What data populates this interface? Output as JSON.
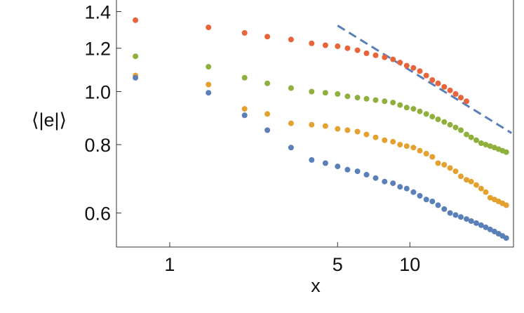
{
  "chart_data": {
    "type": "scatter",
    "title": "",
    "xlabel": "x",
    "ylabel": "⟨|e|⟩",
    "xscale": "log",
    "yscale": "log",
    "xlim": [
      0.6,
      27
    ],
    "ylim": [
      0.52,
      1.47
    ],
    "xticks": [
      {
        "value": 1,
        "label": "1"
      },
      {
        "value": 5,
        "label": "5"
      },
      {
        "value": 10,
        "label": "10"
      }
    ],
    "yticks": [
      {
        "value": 0.6,
        "label": "0.6"
      },
      {
        "value": 0.8,
        "label": "0.8"
      },
      {
        "value": 1.0,
        "label": "1.0"
      },
      {
        "value": 1.2,
        "label": "1.2"
      },
      {
        "value": 1.4,
        "label": "1.4"
      }
    ],
    "grid": false,
    "legend": "none",
    "colors": {
      "red": "#e8643a",
      "green": "#8fb03d",
      "orange": "#e5a12f",
      "blue": "#5b7fb8",
      "reference": "#5b7fb8"
    },
    "series": [
      {
        "color": "#e8643a",
        "x": [
          0.72,
          1.45,
          2.05,
          2.55,
          3.2,
          3.9,
          4.45,
          5.0,
          5.5,
          6.05,
          6.6,
          7.2,
          7.85,
          8.5,
          9.1,
          9.7,
          10.35,
          11.0,
          11.7,
          12.4,
          13.1,
          13.9,
          14.7,
          15.5,
          16.3,
          17.2
        ],
        "y": [
          1.35,
          1.31,
          1.28,
          1.26,
          1.245,
          1.225,
          1.215,
          1.21,
          1.2,
          1.19,
          1.175,
          1.165,
          1.155,
          1.145,
          1.13,
          1.115,
          1.105,
          1.09,
          1.07,
          1.05,
          1.035,
          1.02,
          1.005,
          0.99,
          0.975,
          0.96
        ]
      },
      {
        "color": "#8fb03d",
        "x": [
          0.72,
          1.45,
          2.05,
          2.55,
          3.2,
          3.9,
          4.45,
          5.0,
          5.5,
          6.05,
          6.6,
          7.2,
          7.85,
          8.5,
          9.1,
          9.7,
          10.35,
          11.0,
          11.7,
          12.4,
          13.1,
          13.9,
          14.7,
          15.5,
          16.3,
          17.2,
          18.0,
          18.9,
          19.8,
          20.7,
          21.6,
          22.5,
          23.4,
          24.3,
          25.2
        ],
        "y": [
          1.16,
          1.11,
          1.06,
          1.035,
          1.015,
          1.0,
          0.995,
          0.99,
          0.98,
          0.975,
          0.97,
          0.965,
          0.96,
          0.955,
          0.945,
          0.935,
          0.93,
          0.92,
          0.91,
          0.9,
          0.89,
          0.88,
          0.87,
          0.86,
          0.85,
          0.835,
          0.825,
          0.815,
          0.805,
          0.8,
          0.795,
          0.79,
          0.785,
          0.78,
          0.775
        ]
      },
      {
        "color": "#e5a12f",
        "x": [
          0.72,
          1.45,
          2.05,
          2.55,
          3.2,
          3.9,
          4.45,
          5.0,
          5.5,
          6.05,
          6.6,
          7.2,
          7.85,
          8.5,
          9.1,
          9.7,
          10.35,
          11.0,
          11.7,
          12.4,
          13.1,
          13.9,
          14.7,
          15.5,
          16.3,
          17.2,
          18.0,
          18.9,
          19.8,
          20.7,
          21.6,
          22.5,
          23.4,
          24.3,
          25.2
        ],
        "y": [
          1.07,
          1.03,
          0.93,
          0.91,
          0.875,
          0.87,
          0.865,
          0.855,
          0.85,
          0.845,
          0.835,
          0.825,
          0.815,
          0.81,
          0.8,
          0.795,
          0.79,
          0.78,
          0.77,
          0.76,
          0.74,
          0.735,
          0.725,
          0.715,
          0.7,
          0.69,
          0.685,
          0.675,
          0.665,
          0.655,
          0.64,
          0.635,
          0.63,
          0.625,
          0.62
        ]
      },
      {
        "color": "#5b7fb8",
        "x": [
          0.72,
          1.45,
          2.05,
          2.55,
          3.2,
          3.9,
          4.45,
          5.0,
          5.5,
          6.05,
          6.6,
          7.2,
          7.85,
          8.5,
          9.1,
          9.7,
          10.35,
          11.0,
          11.7,
          12.4,
          13.1,
          13.9,
          14.7,
          15.5,
          16.3,
          17.2,
          18.0,
          18.9,
          19.8,
          20.7,
          21.6,
          22.5,
          23.4,
          24.3,
          25.2
        ],
        "y": [
          1.06,
          0.995,
          0.905,
          0.85,
          0.79,
          0.75,
          0.74,
          0.73,
          0.72,
          0.715,
          0.705,
          0.695,
          0.685,
          0.68,
          0.67,
          0.665,
          0.655,
          0.645,
          0.635,
          0.63,
          0.62,
          0.61,
          0.6,
          0.595,
          0.59,
          0.585,
          0.58,
          0.575,
          0.57,
          0.565,
          0.56,
          0.555,
          0.55,
          0.545,
          0.54
        ]
      }
    ],
    "reference_line": {
      "style": "dashed",
      "color": "#5b7fb8",
      "x": [
        5.0,
        26.5
      ],
      "y": [
        1.32,
        0.84
      ]
    }
  }
}
